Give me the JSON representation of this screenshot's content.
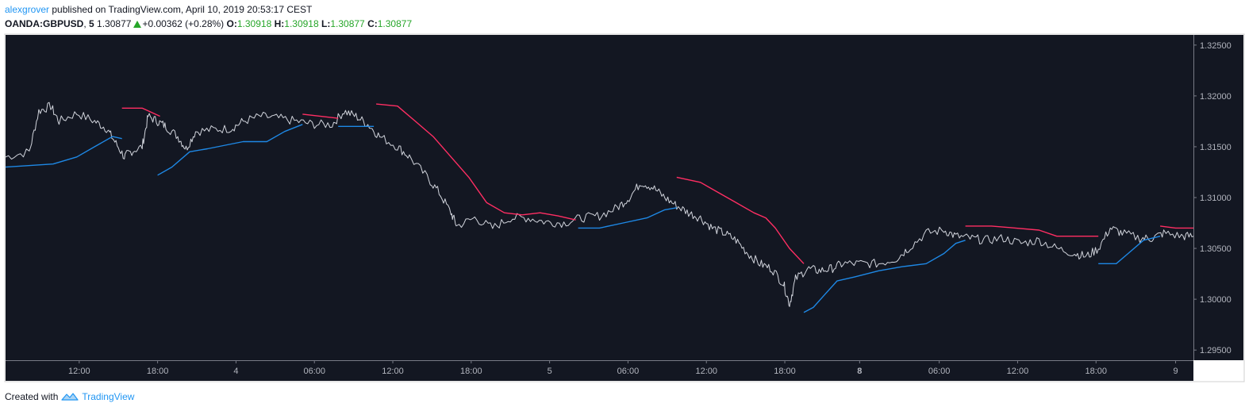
{
  "header": {
    "author": "alexgrover",
    "published": " published on TradingView.com, April 10, 2019 20:53:17 CEST",
    "symbol": "OANDA:GBPUSD",
    "interval": "5",
    "last": "1.30877",
    "change": "+0.00362 (+0.28%)",
    "open_label": "O:",
    "open": "1.30918",
    "high_label": "H:",
    "high": "1.30918",
    "low_label": "L:",
    "low": "1.30877",
    "close_label": "C:",
    "close": "1.30877"
  },
  "footer": {
    "created_with": "Created with",
    "brand": "TradingView"
  },
  "colors": {
    "background": "#131722",
    "price": "#d1d4dc",
    "upper_band": "#ff2e63",
    "lower_band": "#1e88e5",
    "up": "#26a629",
    "brand": "#2196f3"
  },
  "chart_data": {
    "type": "line",
    "ylim": [
      1.294,
      1.326
    ],
    "y_ticks": [
      "1.32500",
      "1.32000",
      "1.31500",
      "1.31000",
      "1.30500",
      "1.30000",
      "1.29500"
    ],
    "x_ticks": [
      {
        "x": 0.062,
        "label": "12:00"
      },
      {
        "x": 0.128,
        "label": "18:00"
      },
      {
        "x": 0.194,
        "label": "4"
      },
      {
        "x": 0.26,
        "label": "06:00"
      },
      {
        "x": 0.326,
        "label": "12:00"
      },
      {
        "x": 0.392,
        "label": "18:00"
      },
      {
        "x": 0.458,
        "label": "5"
      },
      {
        "x": 0.524,
        "label": "06:00"
      },
      {
        "x": 0.59,
        "label": "12:00"
      },
      {
        "x": 0.656,
        "label": "18:00"
      },
      {
        "x": 0.719,
        "label": "8",
        "bold": true
      },
      {
        "x": 0.786,
        "label": "06:00"
      },
      {
        "x": 0.852,
        "label": "12:00"
      },
      {
        "x": 0.918,
        "label": "18:00"
      },
      {
        "x": 0.985,
        "label": "9"
      }
    ],
    "series": [
      {
        "key": "price",
        "points": [
          [
            0,
            1.314
          ],
          [
            0.02,
            1.3145
          ],
          [
            0.028,
            1.3185
          ],
          [
            0.038,
            1.319
          ],
          [
            0.045,
            1.3175
          ],
          [
            0.06,
            1.3183
          ],
          [
            0.075,
            1.3175
          ],
          [
            0.085,
            1.3168
          ],
          [
            0.092,
            1.3155
          ],
          [
            0.1,
            1.314
          ],
          [
            0.105,
            1.3145
          ],
          [
            0.115,
            1.315
          ],
          [
            0.12,
            1.318
          ],
          [
            0.128,
            1.3175
          ],
          [
            0.135,
            1.317
          ],
          [
            0.145,
            1.316
          ],
          [
            0.152,
            1.3148
          ],
          [
            0.16,
            1.3165
          ],
          [
            0.175,
            1.3167
          ],
          [
            0.19,
            1.3168
          ],
          [
            0.2,
            1.3175
          ],
          [
            0.215,
            1.318
          ],
          [
            0.23,
            1.3178
          ],
          [
            0.245,
            1.3175
          ],
          [
            0.26,
            1.3172
          ],
          [
            0.275,
            1.3172
          ],
          [
            0.285,
            1.3185
          ],
          [
            0.295,
            1.318
          ],
          [
            0.305,
            1.3172
          ],
          [
            0.315,
            1.316
          ],
          [
            0.33,
            1.315
          ],
          [
            0.34,
            1.314
          ],
          [
            0.355,
            1.312
          ],
          [
            0.365,
            1.3105
          ],
          [
            0.375,
            1.3085
          ],
          [
            0.38,
            1.3072
          ],
          [
            0.395,
            1.308
          ],
          [
            0.41,
            1.307
          ],
          [
            0.425,
            1.308
          ],
          [
            0.44,
            1.308
          ],
          [
            0.455,
            1.3076
          ],
          [
            0.47,
            1.3075
          ],
          [
            0.485,
            1.308
          ],
          [
            0.5,
            1.3082
          ],
          [
            0.515,
            1.309
          ],
          [
            0.525,
            1.31
          ],
          [
            0.535,
            1.3115
          ],
          [
            0.545,
            1.311
          ],
          [
            0.555,
            1.31
          ],
          [
            0.565,
            1.3092
          ],
          [
            0.575,
            1.3085
          ],
          [
            0.585,
            1.308
          ],
          [
            0.595,
            1.307
          ],
          [
            0.605,
            1.3065
          ],
          [
            0.615,
            1.3058
          ],
          [
            0.625,
            1.3045
          ],
          [
            0.635,
            1.3035
          ],
          [
            0.645,
            1.303
          ],
          [
            0.655,
            1.3015
          ],
          [
            0.66,
            1.2995
          ],
          [
            0.665,
            1.302
          ],
          [
            0.675,
            1.303
          ],
          [
            0.685,
            1.3028
          ],
          [
            0.695,
            1.303
          ],
          [
            0.705,
            1.3035
          ],
          [
            0.72,
            1.3035
          ],
          [
            0.735,
            1.3035
          ],
          [
            0.75,
            1.304
          ],
          [
            0.76,
            1.305
          ],
          [
            0.775,
            1.3065
          ],
          [
            0.79,
            1.3068
          ],
          [
            0.8,
            1.3062
          ],
          [
            0.812,
            1.306
          ],
          [
            0.825,
            1.3058
          ],
          [
            0.84,
            1.306
          ],
          [
            0.855,
            1.3055
          ],
          [
            0.87,
            1.3058
          ],
          [
            0.885,
            1.305
          ],
          [
            0.9,
            1.3045
          ],
          [
            0.91,
            1.3042
          ],
          [
            0.92,
            1.305
          ],
          [
            0.93,
            1.307
          ],
          [
            0.94,
            1.3065
          ],
          [
            0.955,
            1.306
          ],
          [
            0.965,
            1.306
          ],
          [
            0.975,
            1.3065
          ],
          [
            0.99,
            1.3062
          ],
          [
            1,
            1.3062
          ]
        ]
      },
      {
        "key": "upper_band",
        "segments": [
          [
            [
              0.098,
              1.3188
            ],
            [
              0.115,
              1.3188
            ],
            [
              0.13,
              1.318
            ]
          ],
          [
            [
              0.25,
              1.3182
            ],
            [
              0.28,
              1.3178
            ]
          ],
          [
            [
              0.312,
              1.3192
            ],
            [
              0.33,
              1.319
            ],
            [
              0.345,
              1.3175
            ],
            [
              0.36,
              1.316
            ],
            [
              0.375,
              1.314
            ],
            [
              0.39,
              1.312
            ],
            [
              0.405,
              1.3095
            ],
            [
              0.42,
              1.3085
            ],
            [
              0.435,
              1.3083
            ],
            [
              0.45,
              1.3085
            ],
            [
              0.465,
              1.3082
            ],
            [
              0.48,
              1.3078
            ]
          ],
          [
            [
              0.565,
              1.312
            ],
            [
              0.585,
              1.3115
            ],
            [
              0.6,
              1.3105
            ],
            [
              0.615,
              1.3095
            ],
            [
              0.63,
              1.3085
            ],
            [
              0.64,
              1.308
            ],
            [
              0.648,
              1.307
            ],
            [
              0.66,
              1.305
            ],
            [
              0.672,
              1.3035
            ]
          ],
          [
            [
              0.808,
              1.3072
            ],
            [
              0.83,
              1.3072
            ],
            [
              0.85,
              1.307
            ],
            [
              0.87,
              1.3068
            ],
            [
              0.885,
              1.3062
            ],
            [
              0.905,
              1.3062
            ],
            [
              0.92,
              1.3062
            ]
          ],
          [
            [
              0.972,
              1.3072
            ],
            [
              0.985,
              1.307
            ],
            [
              1,
              1.307
            ]
          ]
        ]
      },
      {
        "key": "lower_band",
        "segments": [
          [
            [
              0,
              1.313
            ],
            [
              0.04,
              1.3133
            ],
            [
              0.06,
              1.314
            ],
            [
              0.075,
              1.315
            ],
            [
              0.09,
              1.316
            ],
            [
              0.098,
              1.3158
            ]
          ],
          [
            [
              0.128,
              1.3122
            ],
            [
              0.14,
              1.313
            ],
            [
              0.155,
              1.3145
            ],
            [
              0.17,
              1.3148
            ],
            [
              0.2,
              1.3155
            ],
            [
              0.22,
              1.3155
            ],
            [
              0.235,
              1.3165
            ],
            [
              0.25,
              1.3172
            ]
          ],
          [
            [
              0.28,
              1.317
            ],
            [
              0.31,
              1.317
            ]
          ],
          [
            [
              0.482,
              1.307
            ],
            [
              0.5,
              1.307
            ],
            [
              0.52,
              1.3075
            ],
            [
              0.54,
              1.308
            ],
            [
              0.555,
              1.3088
            ],
            [
              0.565,
              1.309
            ]
          ],
          [
            [
              0.672,
              1.2987
            ],
            [
              0.68,
              1.2992
            ],
            [
              0.69,
              1.3005
            ],
            [
              0.7,
              1.3018
            ],
            [
              0.715,
              1.3022
            ],
            [
              0.735,
              1.3028
            ],
            [
              0.755,
              1.3032
            ],
            [
              0.775,
              1.3035
            ],
            [
              0.79,
              1.3045
            ],
            [
              0.8,
              1.3055
            ],
            [
              0.808,
              1.3058
            ]
          ],
          [
            [
              0.92,
              1.3035
            ],
            [
              0.935,
              1.3035
            ],
            [
              0.945,
              1.3045
            ],
            [
              0.958,
              1.3058
            ],
            [
              0.972,
              1.3062
            ]
          ]
        ]
      }
    ]
  }
}
